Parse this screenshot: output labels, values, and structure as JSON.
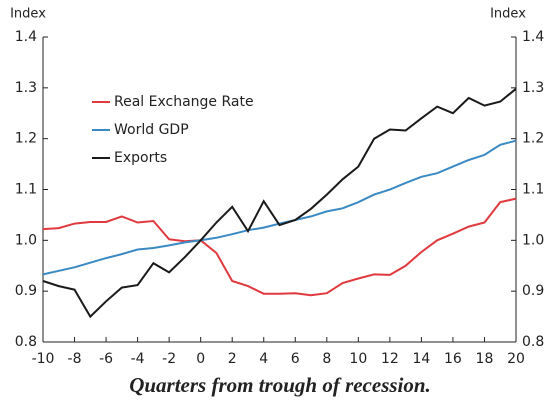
{
  "chart_data": {
    "type": "line",
    "ylabel": "Index",
    "y2label": "Index",
    "xlabel": "Quarters from trough of recession.",
    "x": [
      -10,
      -9,
      -8,
      -7,
      -6,
      -5,
      -4,
      -3,
      -2,
      -1,
      0,
      1,
      2,
      3,
      4,
      5,
      6,
      7,
      8,
      9,
      10,
      11,
      12,
      13,
      14,
      15,
      16,
      17,
      18,
      19,
      20
    ],
    "series": [
      {
        "name": "Real Exchange Rate",
        "color": "#e0393e",
        "values": [
          1.022,
          1.024,
          1.033,
          1.036,
          1.036,
          1.047,
          1.035,
          1.038,
          1.002,
          0.998,
          1.0,
          0.975,
          0.92,
          0.91,
          0.895,
          0.895,
          0.896,
          0.892,
          0.896,
          0.916,
          0.925,
          0.933,
          0.932,
          0.95,
          0.977,
          1.0,
          1.013,
          1.027,
          1.035,
          1.075,
          1.082
        ]
      },
      {
        "name": "World GDP",
        "color": "#3b8ac4",
        "values": [
          0.933,
          0.94,
          0.947,
          0.956,
          0.965,
          0.973,
          0.982,
          0.985,
          0.99,
          0.996,
          1.0,
          1.005,
          1.012,
          1.02,
          1.025,
          1.033,
          1.04,
          1.047,
          1.057,
          1.063,
          1.075,
          1.09,
          1.1,
          1.113,
          1.125,
          1.132,
          1.145,
          1.158,
          1.168,
          1.188,
          1.196
        ]
      },
      {
        "name": "Exports",
        "color": "#1a1a1a",
        "values": [
          0.92,
          0.91,
          0.903,
          0.85,
          0.88,
          0.907,
          0.912,
          0.955,
          0.937,
          0.967,
          1.0,
          1.035,
          1.066,
          1.018,
          1.077,
          1.03,
          1.04,
          1.062,
          1.09,
          1.12,
          1.145,
          1.2,
          1.218,
          1.216,
          1.24,
          1.263,
          1.25,
          1.28,
          1.265,
          1.273,
          1.298
        ]
      }
    ],
    "xlim": [
      -10,
      20
    ],
    "xticks": [
      -10,
      -8,
      -6,
      -4,
      -2,
      0,
      2,
      4,
      6,
      8,
      10,
      12,
      14,
      16,
      18,
      20
    ],
    "ylim": [
      0.8,
      1.4
    ],
    "yticks": [
      0.8,
      0.9,
      {
        "value": 1,
        "label": "1.0"
      },
      1.1,
      1.2,
      1.3,
      1.4
    ],
    "y2lim": [
      0.8,
      1.4
    ],
    "y2ticks": [
      0.8,
      0.9,
      {
        "value": 1,
        "label": "1.0"
      },
      1.1,
      1.2,
      1.3,
      1.4
    ],
    "legend": "left"
  }
}
